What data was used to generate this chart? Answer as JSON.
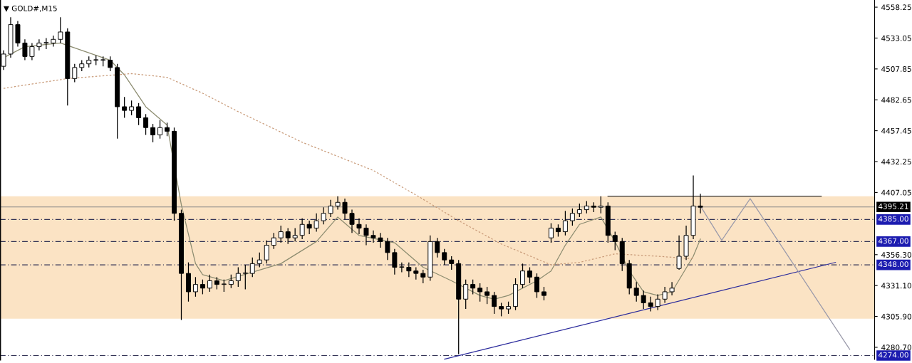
{
  "chart_data": {
    "type": "candlestick",
    "title": "▼ GOLD#,M15",
    "categories": [
      null,
      null,
      null,
      null,
      null,
      null,
      null,
      null,
      null,
      null,
      null,
      null,
      null,
      null,
      null,
      null,
      null,
      null,
      null,
      null,
      null,
      null,
      null,
      null,
      null,
      null,
      null,
      null,
      null,
      null,
      null,
      null,
      null,
      null,
      null,
      null,
      null,
      null,
      null,
      null,
      null,
      null,
      null,
      null,
      null,
      null,
      null,
      null,
      null,
      null,
      null,
      null,
      null,
      null,
      null,
      null,
      null,
      null,
      null,
      null,
      null,
      null,
      null,
      null,
      null,
      null,
      null,
      null,
      null,
      null,
      null,
      null,
      null,
      null,
      null,
      null,
      null,
      null,
      null,
      null,
      null,
      null,
      null,
      null,
      null,
      null,
      null,
      null,
      null,
      null,
      null,
      null,
      null,
      null,
      null,
      null,
      null,
      null,
      null,
      null,
      null,
      null,
      null,
      null,
      null,
      null,
      null,
      null,
      null,
      null,
      null,
      null,
      null,
      null,
      null,
      null,
      null,
      null,
      null,
      null,
      null,
      null,
      null
    ],
    "ohlc": [
      [
        4510,
        4523,
        4507,
        4520
      ],
      [
        4520,
        4550,
        4517,
        4544
      ],
      [
        4544,
        4547,
        4526,
        4529
      ],
      [
        4529,
        4532,
        4515,
        4518
      ],
      [
        4518,
        4529,
        4515,
        4526
      ],
      [
        4526,
        4532,
        4523,
        4529
      ],
      [
        4529,
        4533,
        4524,
        4529
      ],
      [
        4529,
        4535,
        4526,
        4532
      ],
      [
        4532,
        4550,
        4529,
        4538
      ],
      [
        4538,
        4541,
        4478,
        4500
      ],
      [
        4500,
        4512,
        4497,
        4509
      ],
      [
        4509,
        4515,
        4506,
        4512
      ],
      [
        4512,
        4518,
        4509,
        4515
      ],
      [
        4515,
        4519,
        4511,
        4515
      ],
      [
        4515,
        4518,
        4510,
        4515
      ],
      [
        4515,
        4518,
        4506,
        4509
      ],
      [
        4509,
        4512,
        4451,
        4477
      ],
      [
        4477,
        4485,
        4468,
        4474
      ],
      [
        4474,
        4482,
        4470,
        4477
      ],
      [
        4477,
        4480,
        4462,
        4468
      ],
      [
        4468,
        4471,
        4454,
        4460
      ],
      [
        4460,
        4463,
        4448,
        4454
      ],
      [
        4454,
        4466,
        4451,
        4460
      ],
      [
        4460,
        4464,
        4453,
        4457
      ],
      [
        4457,
        4460,
        4384,
        4390
      ],
      [
        4390,
        4393,
        4303,
        4341
      ],
      [
        4341,
        4350,
        4318,
        4326
      ],
      [
        4326,
        4338,
        4322,
        4332
      ],
      [
        4332,
        4336,
        4324,
        4329
      ],
      [
        4329,
        4340,
        4326,
        4335
      ],
      [
        4335,
        4338,
        4328,
        4332
      ],
      [
        4332,
        4336,
        4326,
        4332
      ],
      [
        4332,
        4340,
        4329,
        4335
      ],
      [
        4335,
        4346,
        4330,
        4341
      ],
      [
        4341,
        4348,
        4328,
        4341
      ],
      [
        4341,
        4354,
        4338,
        4349
      ],
      [
        4349,
        4358,
        4346,
        4352
      ],
      [
        4352,
        4368,
        4349,
        4364
      ],
      [
        4364,
        4374,
        4361,
        4370
      ],
      [
        4370,
        4380,
        4366,
        4375
      ],
      [
        4375,
        4378,
        4365,
        4370
      ],
      [
        4370,
        4378,
        4367,
        4372
      ],
      [
        4372,
        4386,
        4369,
        4381
      ],
      [
        4381,
        4384,
        4373,
        4378
      ],
      [
        4378,
        4390,
        4375,
        4384
      ],
      [
        4384,
        4395,
        4381,
        4390
      ],
      [
        4390,
        4401,
        4387,
        4396
      ],
      [
        4396,
        4404,
        4393,
        4399
      ],
      [
        4399,
        4402,
        4385,
        4390
      ],
      [
        4390,
        4393,
        4374,
        4381
      ],
      [
        4381,
        4386,
        4373,
        4378
      ],
      [
        4378,
        4381,
        4364,
        4372
      ],
      [
        4372,
        4376,
        4366,
        4370
      ],
      [
        4370,
        4374,
        4362,
        4367
      ],
      [
        4367,
        4370,
        4352,
        4358
      ],
      [
        4358,
        4361,
        4340,
        4346
      ],
      [
        4346,
        4350,
        4342,
        4346
      ],
      [
        4346,
        4350,
        4338,
        4343
      ],
      [
        4343,
        4346,
        4336,
        4341
      ],
      [
        4341,
        4344,
        4333,
        4338
      ],
      [
        4338,
        4372,
        4335,
        4367
      ],
      [
        4367,
        4370,
        4354,
        4358
      ],
      [
        4358,
        4361,
        4348,
        4352
      ],
      [
        4352,
        4355,
        4344,
        4349
      ],
      [
        4349,
        4352,
        4275,
        4320
      ],
      [
        4320,
        4336,
        4312,
        4332
      ],
      [
        4332,
        4336,
        4324,
        4329
      ],
      [
        4329,
        4333,
        4318,
        4326
      ],
      [
        4326,
        4330,
        4316,
        4323
      ],
      [
        4323,
        4326,
        4308,
        4314
      ],
      [
        4314,
        4317,
        4306,
        4312
      ],
      [
        4312,
        4318,
        4308,
        4314
      ],
      [
        4314,
        4337,
        4311,
        4332
      ],
      [
        4332,
        4349,
        4329,
        4343
      ],
      [
        4343,
        4346,
        4333,
        4338
      ],
      [
        4338,
        4341,
        4321,
        4326
      ],
      [
        4326,
        4330,
        4319,
        4323
      ],
      [
        4370,
        4382,
        4366,
        4378
      ],
      [
        4378,
        4381,
        4371,
        4375
      ],
      [
        4375,
        4392,
        4372,
        4384
      ],
      [
        4384,
        4394,
        4380,
        4390
      ],
      [
        4390,
        4398,
        4387,
        4393
      ],
      [
        4393,
        4400,
        4390,
        4396
      ],
      [
        4396,
        4399,
        4391,
        4395
      ],
      [
        4395,
        4404,
        4390,
        4396
      ],
      [
        4396,
        4399,
        4366,
        4372
      ],
      [
        4372,
        4375,
        4360,
        4367
      ],
      [
        4367,
        4370,
        4343,
        4349
      ],
      [
        4349,
        4352,
        4324,
        4329
      ],
      [
        4329,
        4334,
        4318,
        4323
      ],
      [
        4323,
        4327,
        4312,
        4317
      ],
      [
        4317,
        4322,
        4310,
        4314
      ],
      [
        4314,
        4324,
        4311,
        4320
      ],
      [
        4320,
        4330,
        4317,
        4326
      ],
      [
        4326,
        4334,
        4323,
        4329
      ],
      [
        4345,
        4372,
        4344,
        4355
      ],
      [
        4355,
        4380,
        4352,
        4372
      ],
      [
        4372,
        4421,
        4369,
        4396
      ],
      [
        4396,
        4406,
        4390,
        4395
      ],
      null,
      null,
      null,
      null,
      null,
      null,
      null,
      null,
      null,
      null,
      null,
      null,
      null,
      null,
      null,
      null,
      null,
      null,
      null,
      null,
      null,
      null,
      null,
      null
    ],
    "series": [
      {
        "type": "line",
        "color": "#8c8c70",
        "line_style": "solid",
        "values": [
          4517,
          null,
          null,
          4526,
          null,
          null,
          null,
          null,
          4529,
          null,
          null,
          null,
          null,
          null,
          null,
          4515,
          null,
          4503,
          null,
          null,
          4477,
          null,
          null,
          4462,
          null,
          4397,
          null,
          4349,
          4340,
          null,
          null,
          4335,
          null,
          null,
          null,
          null,
          null,
          null,
          null,
          4349,
          null,
          null,
          null,
          null,
          4367,
          null,
          null,
          4387,
          null,
          null,
          4372,
          null,
          null,
          null,
          null,
          4366,
          null,
          null,
          null,
          4346,
          null,
          null,
          null,
          4335,
          null,
          null,
          null,
          4323,
          null,
          4320,
          null,
          4323,
          null,
          null,
          null,
          4335,
          null,
          4343,
          null,
          4364,
          null,
          4381,
          null,
          null,
          4387,
          null,
          4367,
          null,
          4343,
          null,
          4326,
          null,
          4323,
          null,
          4326,
          null,
          null,
          4355,
          4369,
          null,
          null,
          null,
          null,
          null,
          null,
          null,
          null,
          null,
          null,
          null,
          null,
          null,
          null,
          null,
          null,
          null,
          null,
          null,
          null,
          null,
          null,
          null,
          null
        ]
      },
      {
        "type": "line",
        "color": "#c89a78",
        "line_style": "dotted",
        "values": [
          4492,
          null,
          null,
          null,
          null,
          null,
          null,
          null,
          null,
          4500,
          null,
          null,
          null,
          null,
          null,
          null,
          null,
          null,
          4504,
          null,
          null,
          null,
          null,
          4501,
          null,
          null,
          null,
          null,
          4488,
          null,
          null,
          null,
          null,
          4473,
          null,
          null,
          null,
          null,
          null,
          null,
          null,
          null,
          4448,
          null,
          null,
          null,
          null,
          null,
          null,
          null,
          null,
          null,
          4425,
          null,
          null,
          null,
          null,
          null,
          4405,
          null,
          null,
          null,
          null,
          null,
          4384,
          null,
          null,
          null,
          null,
          null,
          4365,
          null,
          null,
          null,
          null,
          null,
          null,
          4348,
          null,
          null,
          null,
          4350,
          null,
          null,
          null,
          null,
          4357,
          null,
          null,
          null,
          null,
          null,
          4355,
          null,
          null,
          null,
          null,
          4353,
          null,
          null,
          null,
          null,
          null,
          null,
          null,
          null,
          null,
          null,
          null,
          null,
          null,
          null,
          null,
          null,
          null,
          null,
          null,
          null,
          null,
          null,
          null,
          null,
          null
        ]
      },
      {
        "type": "line",
        "color": "#2a2a9c",
        "line_style": "solid",
        "values": [
          null,
          null,
          null,
          null,
          null,
          null,
          null,
          null,
          null,
          null,
          null,
          null,
          null,
          null,
          null,
          null,
          null,
          null,
          null,
          null,
          null,
          null,
          null,
          null,
          null,
          null,
          null,
          null,
          null,
          null,
          null,
          null,
          null,
          null,
          null,
          null,
          null,
          null,
          null,
          null,
          null,
          null,
          null,
          null,
          null,
          null,
          null,
          null,
          null,
          null,
          null,
          null,
          null,
          null,
          null,
          null,
          null,
          null,
          null,
          null,
          null,
          null,
          4271,
          null,
          null,
          null,
          null,
          null,
          null,
          null,
          null,
          null,
          null,
          null,
          null,
          null,
          null,
          null,
          null,
          null,
          null,
          null,
          null,
          null,
          null,
          null,
          null,
          null,
          null,
          null,
          null,
          null,
          null,
          null,
          null,
          null,
          null,
          null,
          null,
          null,
          null,
          null,
          null,
          null,
          null,
          null,
          null,
          null,
          null,
          null,
          null,
          null,
          null,
          null,
          null,
          null,
          null,
          4350,
          null,
          null,
          null,
          null,
          null
        ]
      },
      {
        "type": "line",
        "color": "#333333",
        "line_style": "solid",
        "values": [
          null,
          null,
          null,
          null,
          null,
          null,
          null,
          null,
          null,
          null,
          null,
          null,
          null,
          null,
          null,
          null,
          null,
          null,
          null,
          null,
          null,
          null,
          null,
          null,
          null,
          null,
          null,
          null,
          null,
          null,
          null,
          null,
          null,
          null,
          null,
          null,
          null,
          null,
          null,
          null,
          null,
          null,
          null,
          null,
          null,
          null,
          null,
          null,
          null,
          null,
          null,
          null,
          null,
          null,
          null,
          null,
          null,
          null,
          null,
          null,
          null,
          null,
          null,
          null,
          null,
          null,
          null,
          null,
          null,
          null,
          null,
          null,
          null,
          null,
          null,
          null,
          null,
          null,
          null,
          null,
          null,
          null,
          null,
          null,
          null,
          4404,
          null,
          null,
          null,
          null,
          null,
          null,
          null,
          null,
          null,
          null,
          null,
          null,
          null,
          null,
          null,
          null,
          null,
          null,
          null,
          null,
          null,
          null,
          null,
          null,
          null,
          null,
          null,
          null,
          null,
          4404,
          null,
          null,
          null,
          null,
          null,
          null,
          null
        ]
      },
      {
        "type": "line",
        "color": "#9a9aaa",
        "line_style": "solid",
        "values": [
          null,
          null,
          null,
          null,
          null,
          null,
          null,
          null,
          null,
          null,
          null,
          null,
          null,
          null,
          null,
          null,
          null,
          null,
          null,
          null,
          null,
          null,
          null,
          null,
          null,
          null,
          null,
          null,
          null,
          null,
          null,
          null,
          null,
          null,
          null,
          null,
          null,
          null,
          null,
          null,
          null,
          null,
          null,
          null,
          null,
          null,
          null,
          null,
          null,
          null,
          null,
          null,
          null,
          null,
          null,
          null,
          null,
          null,
          null,
          null,
          null,
          null,
          null,
          null,
          null,
          null,
          null,
          null,
          null,
          null,
          null,
          null,
          null,
          null,
          null,
          null,
          null,
          null,
          null,
          null,
          null,
          null,
          null,
          null,
          null,
          null,
          null,
          null,
          null,
          null,
          null,
          null,
          null,
          null,
          null,
          null,
          null,
          null,
          4396,
          null,
          null,
          4368,
          null,
          null,
          null,
          4402,
          null,
          null,
          null,
          null,
          null,
          null,
          null,
          null,
          null,
          null,
          null,
          null,
          null,
          4279,
          null,
          null,
          null
        ]
      }
    ],
    "ylim": [
      4270.8,
      4564.1
    ],
    "yticks": [
      4558.25,
      4533.05,
      4507.85,
      4482.65,
      4457.45,
      4432.25,
      4407.05,
      {
        "value": 4356.3,
        "label": "4356.30"
      },
      {
        "value": 4331.1,
        "label": "4331.10"
      },
      {
        "value": 4305.9,
        "label": "4305.90"
      },
      {
        "value": 4280.7,
        "label": "4280.70"
      }
    ],
    "tick_labels": "y",
    "bands": [
      {
        "axis": "y",
        "from": 4304,
        "to": 4404,
        "color": "#fbe3c4"
      }
    ],
    "ref_lines": [
      {
        "axis": "y",
        "value": 4395.21,
        "label": "4395.21",
        "color": "#888888",
        "line_style": "solid"
      },
      {
        "axis": "y",
        "value": 4385,
        "label": "4385.00",
        "color": "#333355",
        "line_style": "dashed"
      },
      {
        "axis": "y",
        "value": 4367,
        "label": "4367.00",
        "color": "#333355",
        "line_style": "dashed"
      },
      {
        "axis": "y",
        "value": 4348,
        "label": "4348.00",
        "color": "#333355",
        "line_style": "dashed"
      },
      {
        "axis": "y",
        "value": 4274,
        "label": "4274.00",
        "color": "#333355",
        "line_style": "dashed"
      }
    ]
  }
}
